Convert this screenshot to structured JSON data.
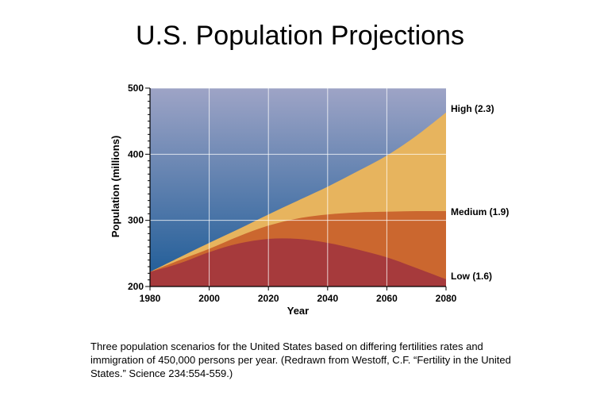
{
  "title": "U.S. Population Projections",
  "caption": "Three population scenarios for the United States based on differing fertilities rates and immigration of 450,000 persons per year.  (Redrawn from Westoff, C.F. “Fertility in the United States.” Science 234:554-559.)",
  "colors": {
    "background_top": "#9ea4c6",
    "background_bottom": "#1b5a96",
    "high": "#e7b45e",
    "medium": "#cb672f",
    "low": "#a63a3c",
    "grid": "#ffffff"
  },
  "chart_data": {
    "type": "area",
    "title": "U.S. Population Projections",
    "xlabel": "Year",
    "ylabel": "Population (millions)",
    "xlim": [
      1980,
      2080
    ],
    "ylim": [
      200,
      500
    ],
    "xticks": [
      1980,
      2000,
      2020,
      2040,
      2060,
      2080
    ],
    "yticks": [
      200,
      300,
      400,
      500
    ],
    "grid": true,
    "x": [
      1980,
      1990,
      2000,
      2010,
      2020,
      2030,
      2040,
      2050,
      2060,
      2070,
      2080
    ],
    "series": [
      {
        "name": "High",
        "label": "High (2.3)",
        "values": [
          222,
          244,
          266,
          287,
          309,
          330,
          351,
          374,
          398,
          428,
          463
        ]
      },
      {
        "name": "Medium",
        "label": "Medium (1.9)",
        "values": [
          222,
          240,
          257,
          276,
          292,
          303,
          309,
          312,
          313,
          314,
          314
        ]
      },
      {
        "name": "Low",
        "label": "Low (1.6)",
        "values": [
          222,
          235,
          252,
          265,
          272,
          272,
          266,
          256,
          244,
          228,
          211
        ]
      }
    ]
  }
}
